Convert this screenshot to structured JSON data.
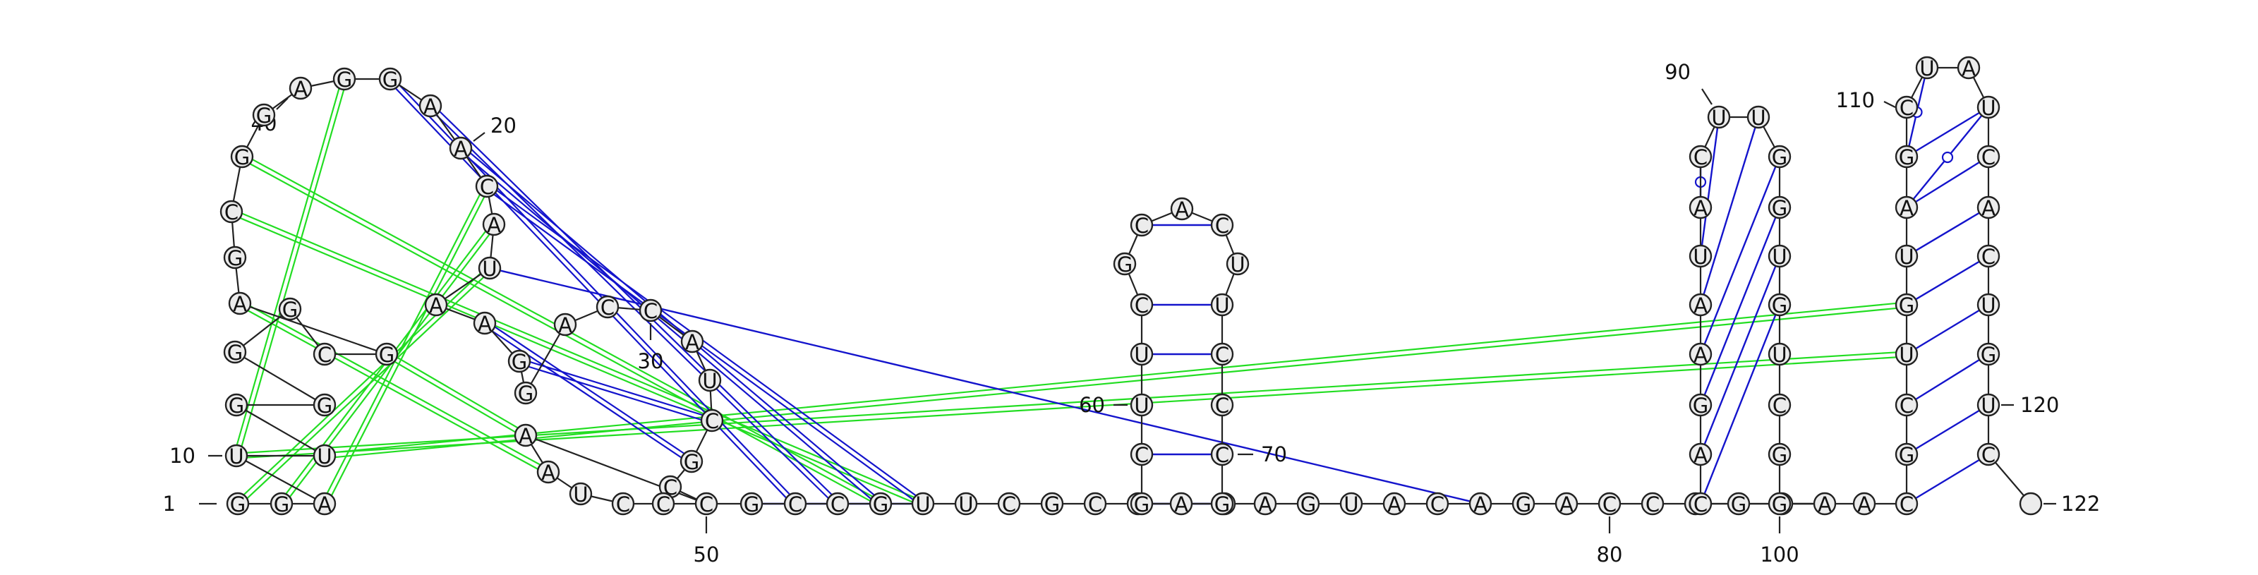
{
  "diagram": {
    "type": "rna-secondary-structure",
    "sequence": "GGAUUGGGGCGAGCGGAGGAACAUAAGGACCAUCGCCAAUCCGCCGUUCGCUACGCUUCGCACUUCCCGAGUACAGACCGGCACAGAAUACUUGGUGUCGGACGCUGUAGCUAUCACUGUC",
    "length": 122,
    "number_labels": [
      "1",
      "10",
      "20",
      "30",
      "40",
      "50",
      "60",
      "70",
      "80",
      "90",
      "100",
      "110",
      "120",
      "122"
    ],
    "colors": {
      "canonical_pair": "#1414cc",
      "wobble_pair": "#1414cc",
      "pseudoknot_pair": "#22dd22",
      "backbone": "#222222",
      "nucleotide_fill": "#ececec"
    },
    "pair_groups": [
      {
        "kind": "canonical",
        "pairs": [
          [
            24,
            75
          ],
          [
            43,
            47
          ],
          [
            55,
            69
          ],
          [
            56,
            68
          ],
          [
            58,
            66
          ],
          [
            59,
            65
          ],
          [
            61,
            63
          ],
          [
            84,
            97
          ],
          [
            85,
            96
          ],
          [
            86,
            95
          ],
          [
            87,
            94
          ],
          [
            88,
            93
          ],
          [
            89,
            92
          ],
          [
            103,
            121
          ],
          [
            104,
            120
          ],
          [
            105,
            119
          ],
          [
            106,
            118
          ],
          [
            107,
            117
          ],
          [
            108,
            116
          ],
          [
            109,
            115
          ],
          [
            110,
            114
          ]
        ]
      },
      {
        "kind": "canonical-double",
        "pairs": [
          [
            26,
            35
          ],
          [
            27,
            34
          ],
          [
            19,
            44
          ],
          [
            20,
            45
          ],
          [
            21,
            46
          ],
          [
            22,
            47
          ]
        ]
      },
      {
        "kind": "pseudoknot",
        "pairs": [
          [
            1,
            24
          ],
          [
            2,
            23
          ],
          [
            3,
            22
          ],
          [
            4,
            18
          ],
          [
            4,
            106
          ],
          [
            5,
            107
          ],
          [
            14,
            47
          ],
          [
            15,
            46
          ],
          [
            12,
            39
          ],
          [
            11,
            38
          ]
        ]
      }
    ],
    "wobble_pairs": [
      [
        90,
        91
      ],
      [
        109,
        114
      ],
      [
        110,
        112
      ]
    ]
  }
}
